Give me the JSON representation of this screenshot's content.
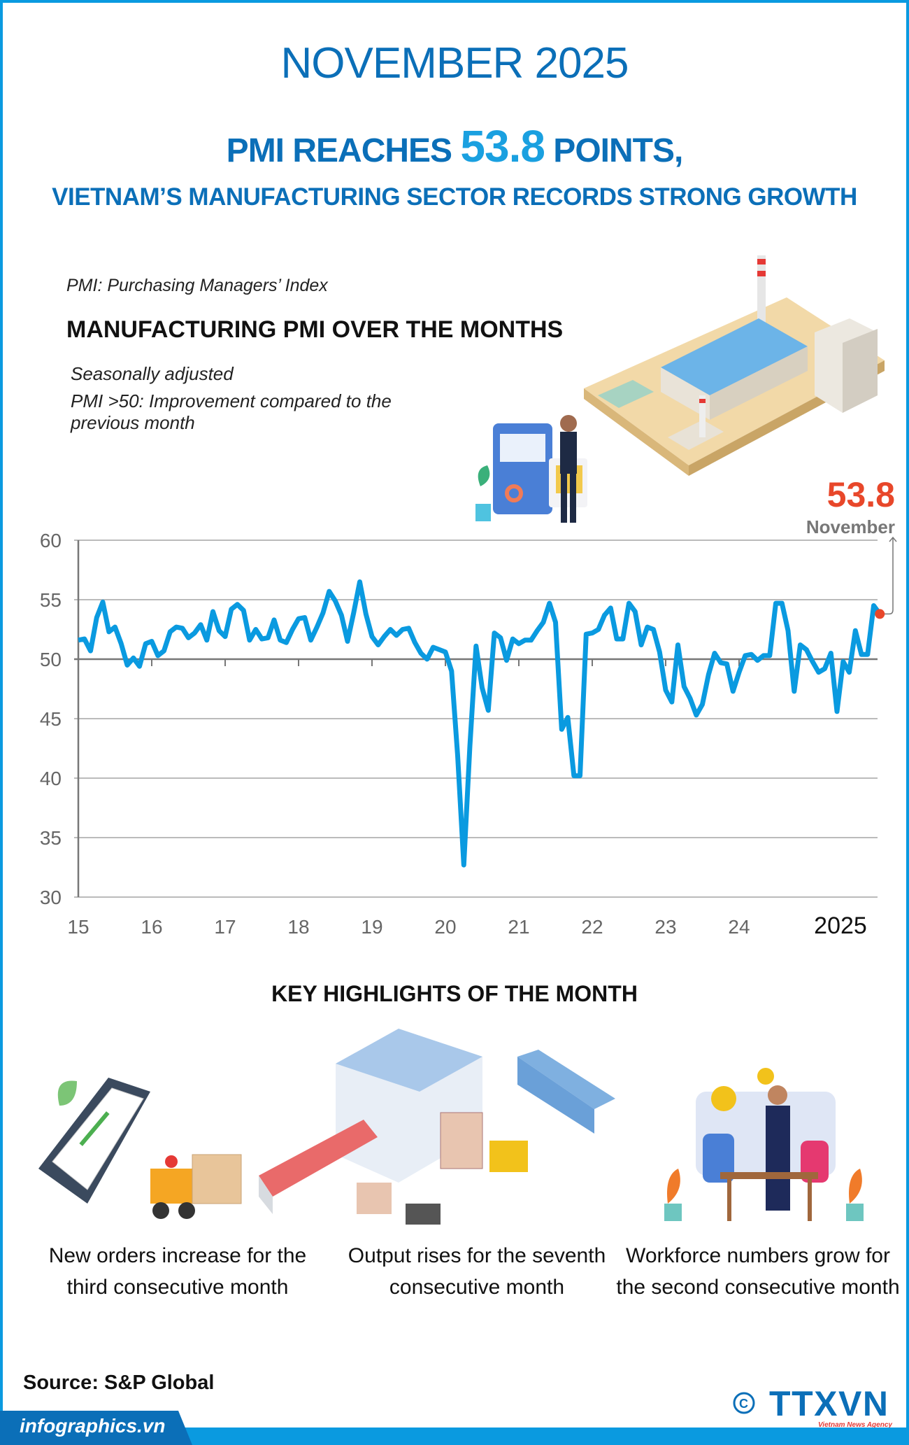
{
  "header": {
    "month_title": "NOVEMBER 2025",
    "headline_prefix": "PMI REACHES",
    "headline_value": "53.8",
    "headline_suffix": "POINTS,",
    "headline_line2": "VIETNAM’S MANUFACTURING SECTOR RECORDS STRONG GROWTH"
  },
  "intro": {
    "definition": "PMI: Purchasing Managers’ Index",
    "chart_title": "MANUFACTURING PMI OVER THE MONTHS",
    "note1": "Seasonally adjusted",
    "note2": "PMI >50: Improvement compared to the previous month"
  },
  "callout": {
    "value": "53.8",
    "label": "November"
  },
  "colors": {
    "brand_blue": "#0b6fb8",
    "line": "#0a9ae0",
    "highlight": "#e8472a"
  },
  "chart_data": {
    "type": "line",
    "title": "MANUFACTURING PMI OVER THE MONTHS",
    "xlabel": "",
    "ylabel": "",
    "ylim": [
      30,
      60
    ],
    "yticks": [
      60,
      55,
      50,
      45,
      40,
      35,
      30
    ],
    "xtick_labels": [
      "15",
      "16",
      "17",
      "18",
      "19",
      "20",
      "21",
      "22",
      "23",
      "24",
      "2025"
    ],
    "start": "2015-01",
    "end": "2025-11",
    "grid": true,
    "reference_line": 50,
    "values": [
      51.6,
      51.7,
      50.7,
      53.5,
      54.8,
      52.3,
      52.7,
      51.3,
      49.5,
      50.1,
      49.4,
      51.3,
      51.5,
      50.3,
      50.7,
      52.3,
      52.7,
      52.6,
      51.8,
      52.2,
      52.9,
      51.6,
      54.0,
      52.4,
      51.9,
      54.2,
      54.6,
      54.1,
      51.6,
      52.5,
      51.7,
      51.8,
      53.3,
      51.6,
      51.4,
      52.5,
      53.4,
      53.5,
      51.6,
      52.7,
      53.9,
      55.7,
      54.9,
      53.7,
      51.5,
      53.9,
      56.5,
      53.8,
      51.9,
      51.2,
      51.9,
      52.5,
      52.0,
      52.5,
      52.6,
      51.4,
      50.5,
      50.0,
      51.0,
      50.8,
      50.6,
      49.0,
      41.9,
      32.7,
      42.7,
      51.1,
      47.6,
      45.7,
      52.2,
      51.8,
      49.9,
      51.7,
      51.3,
      51.6,
      51.6,
      52.4,
      53.1,
      54.7,
      53.1,
      44.1,
      45.1,
      40.2,
      40.2,
      52.1,
      52.2,
      52.5,
      53.7,
      54.3,
      51.7,
      51.7,
      54.7,
      54.0,
      51.2,
      52.7,
      52.5,
      50.6,
      47.4,
      46.4,
      51.2,
      47.7,
      46.7,
      45.3,
      46.2,
      48.7,
      50.5,
      49.7,
      49.6,
      47.3,
      48.9,
      50.3,
      50.4,
      49.9,
      50.3,
      50.3,
      54.7,
      54.7,
      52.4,
      47.3,
      51.2,
      50.8,
      49.8,
      48.9,
      49.2,
      50.5,
      45.6,
      49.8,
      48.9,
      52.4,
      50.4,
      50.4,
      54.5,
      53.8
    ],
    "highlight": {
      "label": "November",
      "value": 53.8
    }
  },
  "highlights": {
    "title": "KEY HIGHLIGHTS OF THE MONTH",
    "items": [
      {
        "text": "New orders increase for the third consecutive month",
        "icon": "orders-forklift-icon"
      },
      {
        "text": "Output rises for the seventh consecutive month",
        "icon": "warehouse-trucks-icon"
      },
      {
        "text": "Workforce numbers grow for the second consecutive month",
        "icon": "team-meeting-icon"
      }
    ]
  },
  "footer": {
    "source": "Source: S&P Global",
    "site": "infographics.vn",
    "logo": "TTXVN",
    "logo_sub": "Vietnam News Agency",
    "copyright": "©"
  }
}
